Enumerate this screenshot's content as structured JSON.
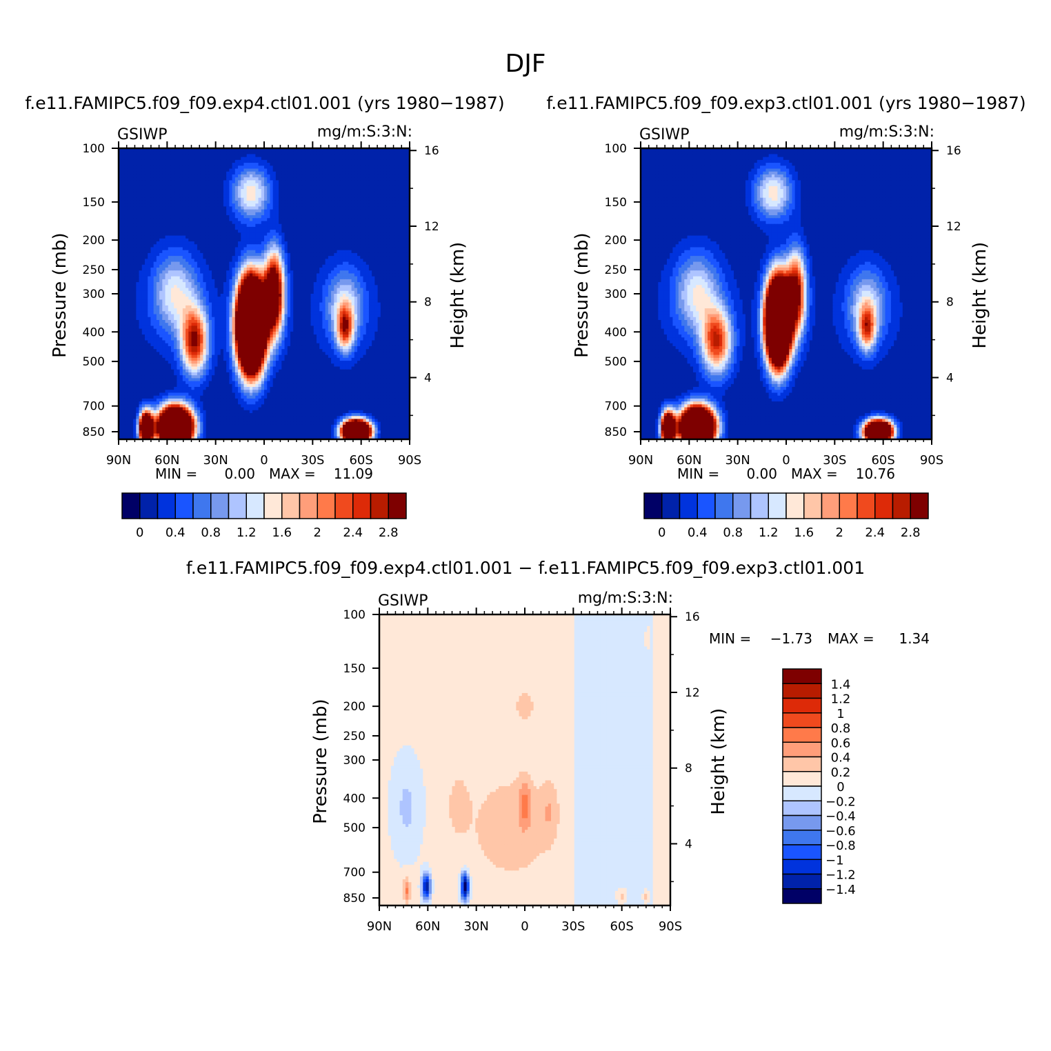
{
  "figure": {
    "title": "DJF"
  },
  "colors": {
    "abs_levels": [
      "#000066",
      "#0022aa",
      "#0033dd",
      "#1a55ff",
      "#3f77ee",
      "#7799ee",
      "#aec4ff",
      "#d7e8ff",
      "#ffe8d8",
      "#ffc6a8",
      "#ff9e7a",
      "#ff7a4a",
      "#f04a1e",
      "#dd2a08",
      "#b81c00",
      "#7e0000"
    ],
    "diff_levels": [
      "#000066",
      "#0022aa",
      "#0033dd",
      "#1a55ff",
      "#3f77ee",
      "#7799ee",
      "#aec4ff",
      "#d7e8ff",
      "#ffe8d8",
      "#ffc6a8",
      "#ff9e7a",
      "#ff7a4a",
      "#f04a1e",
      "#dd2a08",
      "#b81c00",
      "#7e0000"
    ]
  },
  "chart_data": [
    {
      "type": "heatmap",
      "title": "f.e11.FAMIPC5.f09_f09.exp4.ctl01.001 (yrs 1980−1987)",
      "variable": "GSIWP",
      "units": "mg/m:S:3:N:",
      "xlabel": "",
      "ylabel": "Pressure (mb)",
      "ylabel_right": "Height (km)",
      "x_ticks": [
        "90N",
        "60N",
        "30N",
        "0",
        "30S",
        "60S",
        "90S"
      ],
      "y_ticks": [
        "100",
        "150",
        "200",
        "250",
        "300",
        "400",
        "500",
        "700",
        "850"
      ],
      "y_ticks_right": [
        "16",
        "12",
        "8",
        "4"
      ],
      "y_scale": "log",
      "min_label": "MIN =",
      "min": "0.00",
      "max_label": "MAX =",
      "max": "11.09",
      "colorbar_labels": [
        "0",
        "0.4",
        "0.8",
        "1.2",
        "1.6",
        "2",
        "2.4",
        "2.8"
      ],
      "features": [
        {
          "lat": 8,
          "p": 380,
          "value": 11.0,
          "slat": 8,
          "sp": 0.32
        },
        {
          "lat": -6,
          "p": 300,
          "value": 4.0,
          "slat": 6,
          "sp": 0.3
        },
        {
          "lat": 55,
          "p": 820,
          "value": 9.0,
          "slat": 10,
          "sp": 0.14
        },
        {
          "lat": 73,
          "p": 830,
          "value": 6.0,
          "slat": 4,
          "sp": 0.12
        },
        {
          "lat": 43,
          "p": 430,
          "value": 2.7,
          "slat": 8,
          "sp": 0.24
        },
        {
          "lat": 55,
          "p": 300,
          "value": 1.3,
          "slat": 14,
          "sp": 0.3
        },
        {
          "lat": 8,
          "p": 140,
          "value": 1.5,
          "slat": 12,
          "sp": 0.2
        },
        {
          "lat": -57,
          "p": 850,
          "value": 9.0,
          "slat": 8,
          "sp": 0.08
        },
        {
          "lat": -50,
          "p": 390,
          "value": 2.0,
          "slat": 5,
          "sp": 0.16
        },
        {
          "lat": -50,
          "p": 330,
          "value": 1.2,
          "slat": 12,
          "sp": 0.28
        }
      ]
    },
    {
      "type": "heatmap",
      "title": "f.e11.FAMIPC5.f09_f09.exp3.ctl01.001 (yrs 1980−1987)",
      "variable": "GSIWP",
      "units": "mg/m:S:3:N:",
      "xlabel": "",
      "ylabel": "Pressure (mb)",
      "ylabel_right": "Height (km)",
      "x_ticks": [
        "90N",
        "60N",
        "30N",
        "0",
        "30S",
        "60S",
        "90S"
      ],
      "y_ticks": [
        "100",
        "150",
        "200",
        "250",
        "300",
        "400",
        "500",
        "700",
        "850"
      ],
      "y_ticks_right": [
        "16",
        "12",
        "8",
        "4"
      ],
      "y_scale": "log",
      "min_label": "MIN =",
      "min": "0.00",
      "max_label": "MAX =",
      "max": "10.76",
      "colorbar_labels": [
        "0",
        "0.4",
        "0.8",
        "1.2",
        "1.6",
        "2",
        "2.4",
        "2.8"
      ],
      "features": [
        {
          "lat": 5,
          "p": 370,
          "value": 10.0,
          "slat": 7,
          "sp": 0.3
        },
        {
          "lat": -6,
          "p": 300,
          "value": 3.0,
          "slat": 6,
          "sp": 0.3
        },
        {
          "lat": 55,
          "p": 820,
          "value": 9.0,
          "slat": 10,
          "sp": 0.14
        },
        {
          "lat": 73,
          "p": 830,
          "value": 6.0,
          "slat": 4,
          "sp": 0.12
        },
        {
          "lat": 43,
          "p": 430,
          "value": 2.4,
          "slat": 9,
          "sp": 0.24
        },
        {
          "lat": 55,
          "p": 300,
          "value": 1.3,
          "slat": 14,
          "sp": 0.3
        },
        {
          "lat": 8,
          "p": 140,
          "value": 1.5,
          "slat": 12,
          "sp": 0.2
        },
        {
          "lat": -57,
          "p": 850,
          "value": 8.0,
          "slat": 8,
          "sp": 0.08
        },
        {
          "lat": -50,
          "p": 390,
          "value": 1.8,
          "slat": 5,
          "sp": 0.16
        },
        {
          "lat": -50,
          "p": 330,
          "value": 1.2,
          "slat": 12,
          "sp": 0.28
        }
      ]
    },
    {
      "type": "heatmap",
      "title": "f.e11.FAMIPC5.f09_f09.exp4.ctl01.001 − f.e11.FAMIPC5.f09_f09.exp3.ctl01.001",
      "variable": "GSIWP",
      "units": "mg/m:S:3:N:",
      "xlabel": "",
      "ylabel": "Pressure (mb)",
      "ylabel_right": "Height (km)",
      "x_ticks": [
        "90N",
        "60N",
        "30N",
        "0",
        "30S",
        "60S",
        "90S"
      ],
      "y_ticks": [
        "100",
        "150",
        "200",
        "250",
        "300",
        "400",
        "500",
        "700",
        "850"
      ],
      "y_ticks_right": [
        "16",
        "12",
        "8",
        "4"
      ],
      "y_scale": "log",
      "min_label": "MIN =",
      "min": "−1.73",
      "max_label": "MAX =",
      "max": "1.34",
      "colorbar_labels": [
        "1.4",
        "1.2",
        "1",
        "0.8",
        "0.6",
        "0.4",
        "0.2",
        "0",
        "−0.2",
        "−0.4",
        "−0.6",
        "−0.8",
        "−1",
        "−1.2",
        "−1.4"
      ],
      "features": [
        {
          "lat": 8,
          "p": 500,
          "value": 0.25,
          "slat": 30,
          "sp": 0.45
        },
        {
          "lat": 0,
          "p": 200,
          "value": 0.35,
          "slat": 5,
          "sp": 0.1
        },
        {
          "lat": 0,
          "p": 420,
          "value": 0.45,
          "slat": 4,
          "sp": 0.18
        },
        {
          "lat": -15,
          "p": 440,
          "value": 0.25,
          "slat": 5,
          "sp": 0.2
        },
        {
          "lat": 41,
          "p": 420,
          "value": 0.25,
          "slat": 6,
          "sp": 0.2
        },
        {
          "lat": 73,
          "p": 430,
          "value": -0.3,
          "slat": 9,
          "sp": 0.35
        },
        {
          "lat": 61,
          "p": 780,
          "value": -1.5,
          "slat": 2.5,
          "sp": 0.1
        },
        {
          "lat": 37,
          "p": 780,
          "value": -1.7,
          "slat": 2.5,
          "sp": 0.1
        },
        {
          "lat": 73,
          "p": 800,
          "value": 0.6,
          "slat": 2,
          "sp": 0.1
        },
        {
          "lat": -60,
          "p": 840,
          "value": 0.35,
          "slat": 3,
          "sp": 0.05
        },
        {
          "lat": -75,
          "p": 840,
          "value": 0.3,
          "slat": 2,
          "sp": 0.05
        },
        {
          "lat": -76,
          "p": 120,
          "value": 0.15,
          "slat": 2,
          "sp": 0.1
        }
      ]
    }
  ]
}
